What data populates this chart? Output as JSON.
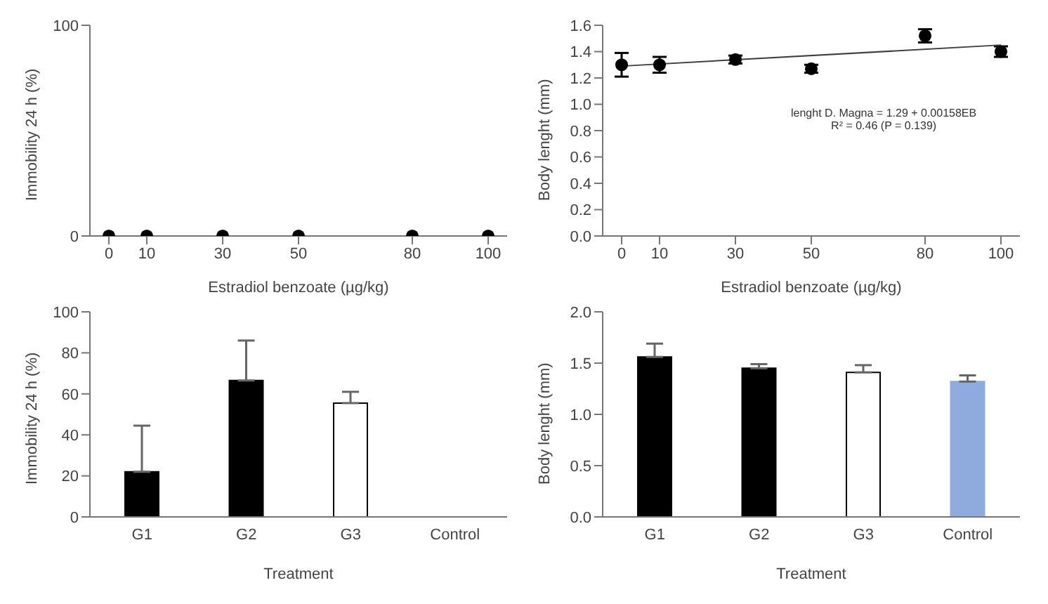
{
  "chart_data": [
    {
      "type": "scatter",
      "xlabel": "Estradiol benzoate (µg/kg)",
      "ylabel": "Immobility 24 h  (%)",
      "x": [
        0,
        10,
        30,
        50,
        80,
        100
      ],
      "values": [
        0,
        0,
        0,
        0,
        0,
        0
      ],
      "color": "#000000",
      "marker": "circle",
      "xlim": [
        -5,
        105
      ],
      "xticks": [
        0,
        10,
        30,
        50,
        80,
        100
      ],
      "ylim": [
        0,
        100
      ],
      "yticks": [
        0,
        100
      ],
      "grid": false,
      "legend": false
    },
    {
      "type": "scatter",
      "xlabel": "Estradiol benzoate (µg/kg)",
      "ylabel": "Body lenght (mm)",
      "marker": "circle",
      "xlim": [
        -5,
        105
      ],
      "xticks": [
        0,
        10,
        30,
        50,
        80,
        100
      ],
      "ylim": [
        0,
        1.6
      ],
      "yticks": [
        {
          "value": 0,
          "label": "0.0"
        },
        {
          "value": 0.2,
          "label": "0.2"
        },
        {
          "value": 0.4,
          "label": "0.4"
        },
        {
          "value": 0.6,
          "label": "0.6"
        },
        {
          "value": 0.8,
          "label": "0.8"
        },
        {
          "value": 1,
          "label": "1.0"
        },
        {
          "value": 1.2,
          "label": "1.2"
        },
        {
          "value": 1.4,
          "label": "1.4"
        },
        {
          "value": 1.6,
          "label": "1.6"
        }
      ],
      "grid": false,
      "legend": false,
      "annotations": [
        "lenght D. Magna = 1.29 + 0.00158EB",
        "R² = 0.46 (P = 0.139)"
      ],
      "series": [
        {
          "color": "#000000",
          "x": [
            0,
            10,
            30,
            50,
            80,
            100
          ],
          "values": [
            1.3,
            1.3,
            1.34,
            1.27,
            1.52,
            1.4
          ],
          "errors": [
            0.09,
            0.06,
            0.03,
            0.03,
            0.05,
            0.04
          ]
        },
        {
          "type": "line",
          "marker": "none",
          "color": "#404040",
          "x": [
            0,
            100
          ],
          "values": [
            1.29,
            1.45
          ]
        }
      ]
    },
    {
      "type": "bar",
      "xlabel": "Treatment",
      "ylabel": "Immobility 24 h  (%)",
      "categories": [
        "G1",
        "G2",
        "G3",
        "Control"
      ],
      "values": [
        22,
        66.5,
        55.5,
        null
      ],
      "colors": [
        "#000000",
        "#000000",
        "#ffffff",
        "#ffffff"
      ],
      "errors": [
        [
          22,
          44.5
        ],
        [
          66.5,
          86
        ],
        [
          55.5,
          61
        ],
        null
      ],
      "ylim": [
        0,
        100
      ],
      "yticks": [
        0,
        20,
        40,
        60,
        80,
        100
      ],
      "grid": false,
      "legend": false
    },
    {
      "type": "bar",
      "xlabel": "Treatment",
      "ylabel": "Body lenght (mm)",
      "categories": [
        "G1",
        "G2",
        "G3",
        "Control"
      ],
      "values": [
        1.56,
        1.45,
        1.41,
        1.32
      ],
      "colors": [
        "#000000",
        "#000000",
        "#ffffff",
        "#8faadc"
      ],
      "errors": [
        [
          1.56,
          1.69
        ],
        [
          1.45,
          1.49
        ],
        [
          1.41,
          1.48
        ],
        [
          1.32,
          1.38
        ]
      ],
      "ylim": [
        0,
        2
      ],
      "yticks": [
        {
          "value": 0,
          "label": "0.0"
        },
        {
          "value": 0.5,
          "label": "0.5"
        },
        {
          "value": 1,
          "label": "1.0"
        },
        {
          "value": 1.5,
          "label": "1.5"
        },
        {
          "value": 2,
          "label": "2.0"
        }
      ],
      "grid": false,
      "legend": false
    }
  ]
}
